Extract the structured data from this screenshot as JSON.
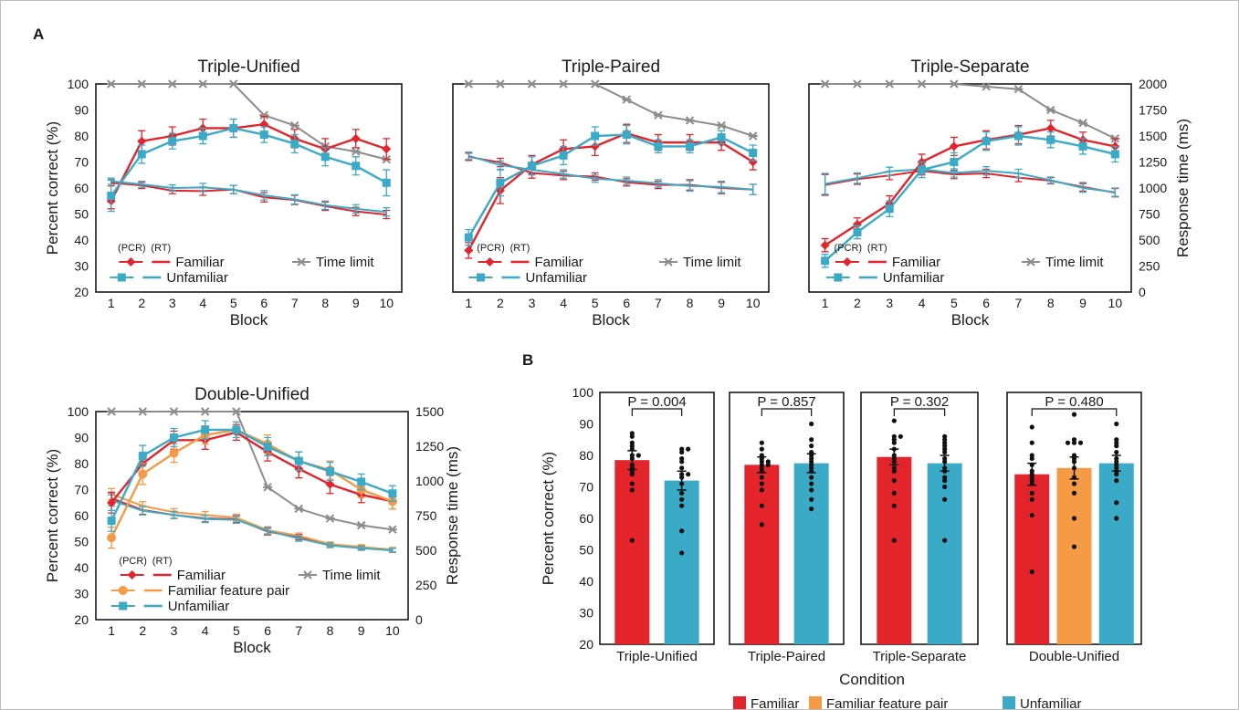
{
  "figure": {
    "panel_a_letter": "A",
    "panel_b_letter": "B",
    "pcr_tag": "(PCR)",
    "rt_tag": "(RT)",
    "legend_familiar": "Familiar",
    "legend_unfamiliar": "Unfamiliar",
    "legend_fam_pair": "Familiar feature pair",
    "legend_time_limit": "Time limit",
    "condition_label": "Condition",
    "bar_legend": [
      "Familiar",
      "Familiar feature pair",
      "Unfamiliar"
    ]
  },
  "colors": {
    "familiar": "#e3242b",
    "unfamiliar": "#3aaac6",
    "fam_pair": "#f59a45",
    "time_limit": "#8c8c8c",
    "axis": "#1a1a1a"
  },
  "chart_data": [
    {
      "type": "line",
      "title": "Triple-Unified",
      "xlabel": "Block",
      "ylabel": "Percent correct (%)",
      "y2label": "",
      "x": [
        1,
        2,
        3,
        4,
        5,
        6,
        7,
        8,
        9,
        10
      ],
      "ylim": [
        20,
        100
      ],
      "y2lim": [
        0,
        2000
      ],
      "yticks": [
        20,
        30,
        40,
        50,
        60,
        70,
        80,
        90,
        100
      ],
      "y2ticks": [],
      "series": [
        {
          "name": "Familiar",
          "measure": "PCR",
          "axis": "left",
          "values": [
            55,
            78,
            80,
            83,
            83,
            84.5,
            79,
            75,
            79,
            75
          ],
          "errors": [
            3,
            4,
            3.5,
            3.5,
            3.5,
            3,
            3.5,
            4,
            3.5,
            4
          ]
        },
        {
          "name": "Unfamiliar",
          "measure": "PCR",
          "axis": "left",
          "values": [
            57,
            73,
            78,
            80,
            83,
            80.5,
            77,
            72,
            68.5,
            62
          ],
          "errors": [
            6,
            3.5,
            3,
            3,
            3.5,
            3,
            3.5,
            3.5,
            3.5,
            5
          ]
        },
        {
          "name": "Familiar",
          "measure": "RT",
          "axis": "right",
          "values": [
            1050,
            1025,
            975,
            970,
            985,
            910,
            885,
            825,
            775,
            745
          ],
          "errors": [
            30,
            30,
            30,
            40,
            40,
            45,
            45,
            40,
            40,
            40
          ]
        },
        {
          "name": "Unfamiliar",
          "measure": "RT",
          "axis": "right",
          "values": [
            1065,
            1035,
            1000,
            1005,
            985,
            930,
            890,
            835,
            800,
            770
          ],
          "errors": [
            30,
            30,
            30,
            40,
            40,
            45,
            45,
            40,
            40,
            40
          ]
        },
        {
          "name": "Time limit",
          "measure": "TL",
          "axis": "right",
          "values": [
            2000,
            2000,
            2000,
            2000,
            2000,
            1700,
            1600,
            1400,
            1350,
            1275
          ],
          "errors": null
        }
      ],
      "legend_pos": "bottom-left"
    },
    {
      "type": "line",
      "title": "Triple-Paired",
      "xlabel": "Block",
      "ylabel": "",
      "y2label": "",
      "x": [
        1,
        2,
        3,
        4,
        5,
        6,
        7,
        8,
        9,
        10
      ],
      "ylim": [
        20,
        100
      ],
      "y2lim": [
        0,
        2000
      ],
      "yticks": [],
      "y2ticks": [],
      "series": [
        {
          "name": "Familiar",
          "measure": "PCR",
          "axis": "left",
          "values": [
            36,
            59,
            69,
            75,
            76,
            81,
            77.5,
            77.5,
            77.5,
            70
          ],
          "errors": [
            3,
            5,
            3.5,
            3.5,
            3.5,
            3.5,
            3,
            3,
            3,
            3
          ]
        },
        {
          "name": "Unfamiliar",
          "measure": "PCR",
          "axis": "left",
          "values": [
            41,
            62,
            68.5,
            72.5,
            80,
            80.5,
            76,
            76,
            79.5,
            73.5
          ],
          "errors": [
            3,
            5,
            3.5,
            3.5,
            3.5,
            3.5,
            2.5,
            2.5,
            2.5,
            3
          ]
        },
        {
          "name": "Familiar",
          "measure": "RT",
          "axis": "right",
          "values": [
            1300,
            1245,
            1145,
            1120,
            1110,
            1055,
            1030,
            1030,
            1000,
            985
          ],
          "errors": [
            35,
            40,
            50,
            40,
            35,
            35,
            35,
            50,
            55,
            50
          ]
        },
        {
          "name": "Unfamiliar",
          "measure": "RT",
          "axis": "right",
          "values": [
            1310,
            1220,
            1175,
            1135,
            1090,
            1070,
            1045,
            1020,
            1010,
            985
          ],
          "errors": [
            35,
            40,
            50,
            40,
            35,
            35,
            35,
            50,
            55,
            50
          ]
        },
        {
          "name": "Time limit",
          "measure": "TL",
          "axis": "right",
          "values": [
            2000,
            2000,
            2000,
            2000,
            2000,
            1850,
            1700,
            1650,
            1600,
            1500
          ],
          "errors": null
        }
      ],
      "legend_pos": "bottom-left"
    },
    {
      "type": "line",
      "title": "Triple-Separate",
      "xlabel": "Block",
      "ylabel": "",
      "y2label": "Response time (ms)",
      "x": [
        1,
        2,
        3,
        4,
        5,
        6,
        7,
        8,
        9,
        10
      ],
      "ylim": [
        20,
        100
      ],
      "y2lim": [
        0,
        2000
      ],
      "yticks": [],
      "y2ticks": [
        0,
        250,
        500,
        750,
        1000,
        1250,
        1500,
        1750,
        2000
      ],
      "series": [
        {
          "name": "Familiar",
          "measure": "PCR",
          "axis": "left",
          "values": [
            38,
            46,
            54,
            70,
            76,
            78.5,
            80.5,
            83,
            78.5,
            76
          ],
          "errors": [
            2.5,
            2.5,
            3,
            3,
            3.5,
            3.5,
            3.5,
            3,
            3,
            3
          ]
        },
        {
          "name": "Unfamiliar",
          "measure": "PCR",
          "axis": "left",
          "values": [
            32,
            43,
            52,
            67,
            70,
            78,
            80,
            78.5,
            76,
            73
          ],
          "errors": [
            2.5,
            2.5,
            3,
            3,
            3.5,
            3.5,
            3.5,
            3,
            3,
            3
          ]
        },
        {
          "name": "Familiar",
          "measure": "RT",
          "axis": "right",
          "values": [
            1030,
            1085,
            1120,
            1165,
            1130,
            1140,
            1100,
            1070,
            1010,
            955
          ],
          "errors": [
            100,
            50,
            40,
            40,
            40,
            40,
            40,
            30,
            40,
            40
          ]
        },
        {
          "name": "Unfamiliar",
          "measure": "RT",
          "axis": "right",
          "values": [
            1040,
            1095,
            1160,
            1180,
            1145,
            1165,
            1140,
            1075,
            1000,
            960
          ],
          "errors": [
            100,
            50,
            40,
            40,
            40,
            40,
            40,
            30,
            40,
            40
          ]
        },
        {
          "name": "Time limit",
          "measure": "TL",
          "axis": "right",
          "values": [
            2000,
            2000,
            2000,
            2000,
            2000,
            1975,
            1950,
            1750,
            1625,
            1475
          ],
          "errors": null
        }
      ],
      "legend_pos": "bottom-left"
    },
    {
      "type": "line",
      "title": "Double-Unified",
      "xlabel": "Block",
      "ylabel": "Percent correct (%)",
      "y2label": "Response time (ms)",
      "x": [
        1,
        2,
        3,
        4,
        5,
        6,
        7,
        8,
        9,
        10
      ],
      "ylim": [
        20,
        100
      ],
      "y2lim": [
        0,
        1500
      ],
      "yticks": [
        20,
        30,
        40,
        50,
        60,
        70,
        80,
        90,
        100
      ],
      "y2ticks": [
        0,
        250,
        500,
        750,
        1000,
        1250,
        1500
      ],
      "series": [
        {
          "name": "Familiar",
          "measure": "PCR",
          "axis": "left",
          "values": [
            65,
            80,
            89,
            89,
            92,
            84.5,
            78,
            72,
            68,
            65.5
          ],
          "errors": [
            4,
            4,
            3.5,
            3.5,
            3,
            3.5,
            3.5,
            3.5,
            3,
            3
          ]
        },
        {
          "name": "Familiar feature pair",
          "measure": "PCR",
          "axis": "left",
          "values": [
            51.5,
            76,
            84,
            91,
            93,
            87.5,
            81,
            77.5,
            70,
            65.5
          ],
          "errors": [
            4,
            4,
            3.5,
            3.5,
            3,
            3.5,
            3.5,
            3.5,
            3,
            3
          ]
        },
        {
          "name": "Unfamiliar",
          "measure": "PCR",
          "axis": "left",
          "values": [
            58,
            83,
            90,
            93,
            93,
            86.5,
            81,
            77,
            73,
            68.5
          ],
          "errors": [
            4,
            4,
            3.5,
            3.5,
            3,
            3.5,
            3.5,
            3.5,
            3,
            3
          ]
        },
        {
          "name": "Familiar",
          "measure": "RT",
          "axis": "right",
          "values": [
            875,
            790,
            755,
            730,
            725,
            635,
            595,
            540,
            520,
            500
          ],
          "errors": [
            40,
            30,
            25,
            25,
            25,
            25,
            20,
            15,
            15,
            15
          ]
        },
        {
          "name": "Familiar feature pair",
          "measure": "RT",
          "axis": "right",
          "values": [
            905,
            820,
            775,
            755,
            735,
            645,
            605,
            545,
            525,
            505
          ],
          "errors": [
            40,
            30,
            25,
            25,
            25,
            25,
            20,
            15,
            15,
            15
          ]
        },
        {
          "name": "Unfamiliar",
          "measure": "RT",
          "axis": "right",
          "values": [
            860,
            785,
            755,
            725,
            720,
            640,
            585,
            535,
            515,
            500
          ],
          "errors": [
            40,
            30,
            25,
            25,
            25,
            25,
            20,
            15,
            15,
            15
          ]
        },
        {
          "name": "Time limit",
          "measure": "TL",
          "axis": "right",
          "values": [
            1500,
            1500,
            1500,
            1500,
            1500,
            955,
            800,
            730,
            680,
            650
          ],
          "errors": null
        }
      ],
      "legend_pos": "bottom-left"
    },
    {
      "type": "bar",
      "title": "",
      "xlabel": "Condition",
      "ylabel": "Percent correct (%)",
      "ylim": [
        20,
        100
      ],
      "yticks": [
        20,
        30,
        40,
        50,
        60,
        70,
        80,
        90,
        100
      ],
      "groups": [
        {
          "name": "Triple-Unified",
          "p": "P = 0.004",
          "bars": [
            {
              "name": "Familiar",
              "value": 78.5,
              "sem": 3,
              "points": [
                87,
                86,
                84,
                83,
                82,
                80,
                80,
                79,
                77,
                76,
                75,
                74,
                71,
                69,
                53
              ]
            },
            {
              "name": "Unfamiliar",
              "value": 72,
              "sem": 3,
              "points": [
                82,
                82,
                81,
                79,
                78,
                76,
                74,
                74,
                73,
                71,
                68,
                66,
                64,
                56,
                49
              ]
            }
          ]
        },
        {
          "name": "Triple-Paired",
          "p": "P = 0.857",
          "bars": [
            {
              "name": "Familiar",
              "value": 77,
              "sem": 2.5,
              "points": [
                84,
                82,
                80,
                79,
                78,
                78,
                77,
                77,
                76,
                75,
                73,
                71,
                69,
                64,
                58
              ]
            },
            {
              "name": "Unfamiliar",
              "value": 77.5,
              "sem": 3,
              "points": [
                90,
                85,
                83,
                81,
                80,
                79,
                78,
                77,
                76,
                75,
                73,
                71,
                69,
                66,
                63
              ]
            }
          ]
        },
        {
          "name": "Triple-Separate",
          "p": "P = 0.302",
          "bars": [
            {
              "name": "Familiar",
              "value": 79.5,
              "sem": 2.5,
              "points": [
                91,
                86,
                86,
                85,
                84,
                82,
                80,
                79,
                78,
                76,
                75,
                72,
                68,
                64,
                53
              ]
            },
            {
              "name": "Unfamiliar",
              "value": 77.5,
              "sem": 2.5,
              "points": [
                86,
                85,
                84,
                83,
                82,
                81,
                79,
                78,
                76,
                75,
                73,
                72,
                70,
                66,
                53
              ]
            }
          ]
        },
        {
          "name": "Double-Unified",
          "p": "P = 0.480",
          "bars": [
            {
              "name": "Familiar",
              "value": 74,
              "sem": 3.5,
              "points": [
                89,
                84,
                80,
                79,
                77,
                75,
                74,
                73,
                72,
                71,
                68,
                66,
                61,
                43
              ]
            },
            {
              "name": "Familiar feature pair",
              "value": 76,
              "sem": 3.5,
              "points": [
                93,
                85,
                84,
                84,
                84,
                80,
                79,
                78,
                76,
                73,
                71,
                68,
                60,
                51
              ]
            },
            {
              "name": "Unfamiliar",
              "value": 77.5,
              "sem": 2.5,
              "points": [
                90,
                85,
                84,
                83,
                81,
                79,
                78,
                77,
                76,
                75,
                74,
                72,
                65,
                60
              ]
            }
          ]
        }
      ],
      "legend_pos": "bottom-center"
    }
  ]
}
